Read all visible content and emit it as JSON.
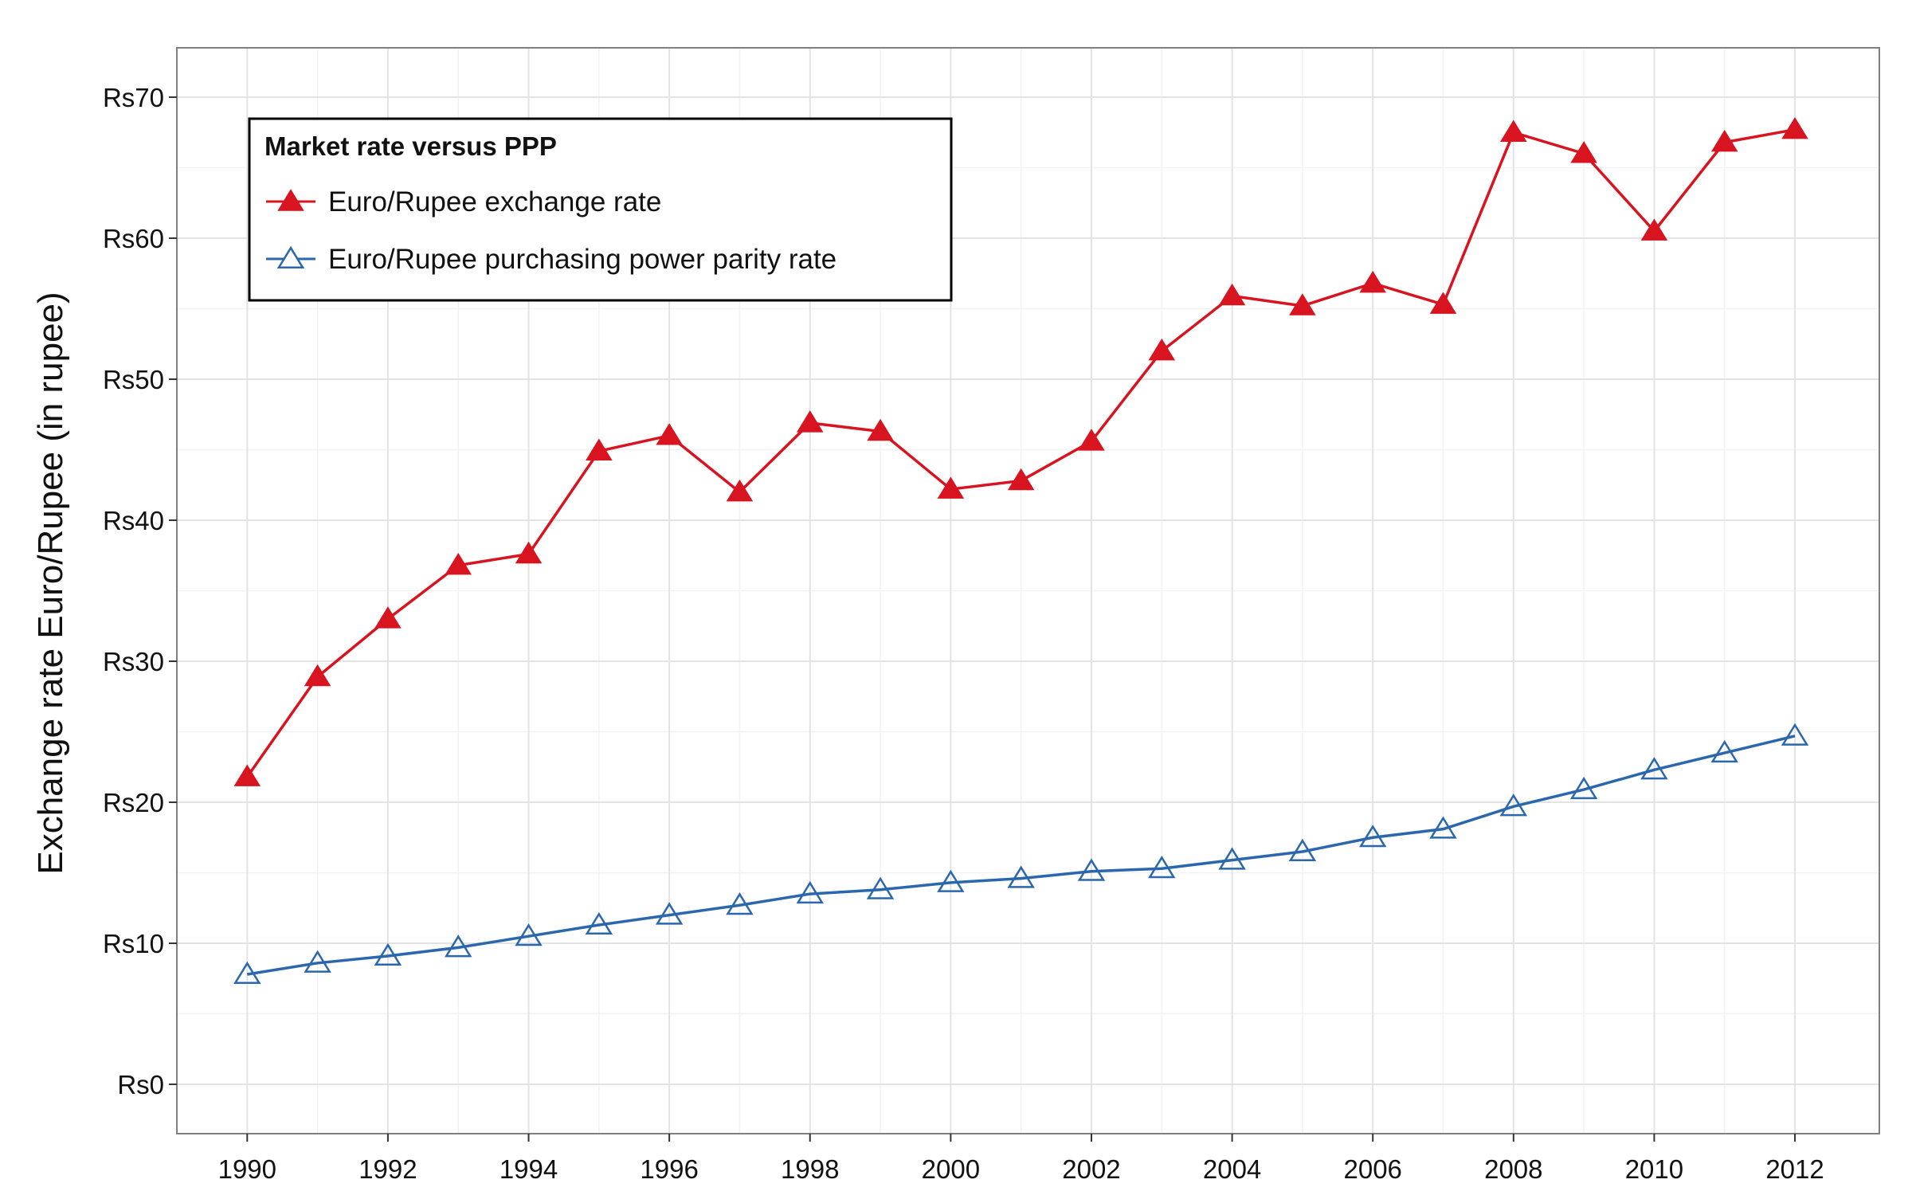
{
  "chart_data": {
    "type": "line",
    "title": "",
    "xlabel": "",
    "ylabel": "Exchange rate Euro/Rupee (in rupee)",
    "x": [
      1990,
      1991,
      1992,
      1993,
      1994,
      1995,
      1996,
      1997,
      1998,
      1999,
      2000,
      2001,
      2002,
      2003,
      2004,
      2005,
      2006,
      2007,
      2008,
      2009,
      2010,
      2011,
      2012
    ],
    "xlim": [
      1989,
      2013.2
    ],
    "ylim": [
      -3.5,
      73.5
    ],
    "x_ticks": [
      1990,
      1992,
      1994,
      1996,
      1998,
      2000,
      2002,
      2004,
      2006,
      2008,
      2010,
      2012
    ],
    "x_tick_labels": [
      "1990",
      "1992",
      "1994",
      "1996",
      "1998",
      "2000",
      "2002",
      "2004",
      "2006",
      "2008",
      "2010",
      "2012"
    ],
    "y_ticks": [
      0,
      10,
      20,
      30,
      40,
      50,
      60,
      70
    ],
    "y_tick_labels": [
      "Rs0",
      "Rs10",
      "Rs20",
      "Rs30",
      "Rs40",
      "Rs50",
      "Rs60",
      "Rs70"
    ],
    "grid": true,
    "legend": {
      "title": "Market rate versus PPP",
      "placement": "top-left"
    },
    "series": [
      {
        "name": "Euro/Rupee exchange rate",
        "color": "#d7141f",
        "marker": "filled-triangle",
        "values": [
          21.8,
          28.9,
          33.0,
          36.8,
          37.6,
          44.9,
          46.0,
          42.0,
          46.9,
          46.3,
          42.2,
          42.8,
          45.6,
          52.0,
          55.9,
          55.2,
          56.8,
          55.3,
          67.5,
          66.0,
          60.5,
          66.8,
          67.7
        ]
      },
      {
        "name": "Euro/Rupee purchasing power parity rate",
        "color": "#2b67ad",
        "marker": "open-triangle",
        "values": [
          7.8,
          8.6,
          9.1,
          9.7,
          10.5,
          11.3,
          12.0,
          12.7,
          13.5,
          13.8,
          14.3,
          14.6,
          15.1,
          15.3,
          15.9,
          16.5,
          17.5,
          18.1,
          19.7,
          20.9,
          22.3,
          23.5,
          24.7
        ]
      }
    ]
  }
}
